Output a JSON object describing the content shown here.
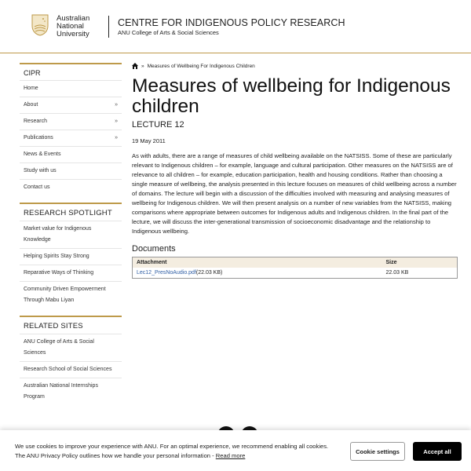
{
  "header": {
    "logo_text": [
      "Australian",
      "National",
      "University"
    ],
    "site_title": "CENTRE FOR INDIGENOUS POLICY RESEARCH",
    "site_subtitle": "ANU College of Arts & Social Sciences"
  },
  "sidebar": {
    "menu_title": "CIPR",
    "menu": [
      {
        "label": "Home"
      },
      {
        "label": "About",
        "chevron": "»"
      },
      {
        "label": "Research",
        "chevron": "»"
      },
      {
        "label": "Publications",
        "chevron": "»"
      },
      {
        "label": "News & Events"
      },
      {
        "label": "Study with us"
      },
      {
        "label": "Contact us"
      }
    ],
    "spotlight_title": "RESEARCH SPOTLIGHT",
    "spotlight": [
      "Market value for Indigenous Knowledge",
      "Helping Spirits Stay Strong",
      "Reparative Ways of Thinking",
      "Community Driven Empowerment Through Mabu Liyan"
    ],
    "related_title": "RELATED SITES",
    "related": [
      "ANU College of Arts & Social Sciences",
      "Research School of Social Sciences",
      "Australian National Internships Program"
    ]
  },
  "breadcrumb": {
    "sep": "»",
    "current": "Measures of Wellbeing For Indigenous Children"
  },
  "main": {
    "title": "Measures of wellbeing for Indigenous children",
    "subtitle": "LECTURE 12",
    "date": "19 May 2011",
    "body": "As with adults, there are a range of measures of child wellbeing available on the NATSISS. Some of these are particularly relevant to Indigenous children – for example, language and cultural participation. Other measures on the NATSISS are of relevance to all children – for example, education participation, health and housing conditions. Rather than choosing a single measure of wellbeing, the analysis presented in this lecture focuses on measures of child wellbeing across a number of domains. The lecture will begin with a discussion of the difficulties involved with measuring and analysing measures of wellbeing for Indigenous children. We will then present analysis on a number of new variables from the NATSISS, making comparisons where appropriate between outcomes for Indigenous adults and Indigenous children. In the final part of the lecture, we will discuss the inter-generational transmission of socioeconomic disadvantage and the relationship to Indigenous wellbeing.",
    "documents_heading": "Documents",
    "table": {
      "headers": [
        "Attachment",
        "Size"
      ],
      "rows": [
        {
          "file": "Lec12_PresNoAudio.pdf",
          "file_size_inline": "(22.03 KB)",
          "size": "22.03 KB"
        }
      ]
    }
  },
  "cookie": {
    "text": "We use cookies to improve your experience with ANU. For an optimal experience, we recommend enabling all cookies. The ANU Privacy Policy outlines how we handle your personal information - ",
    "read_more": "Read more",
    "settings": "Cookie settings",
    "accept": "Accept all"
  },
  "colors": {
    "accent": "#be9a4a",
    "link": "#2f5ea5",
    "table_header": "#f4ede0"
  }
}
